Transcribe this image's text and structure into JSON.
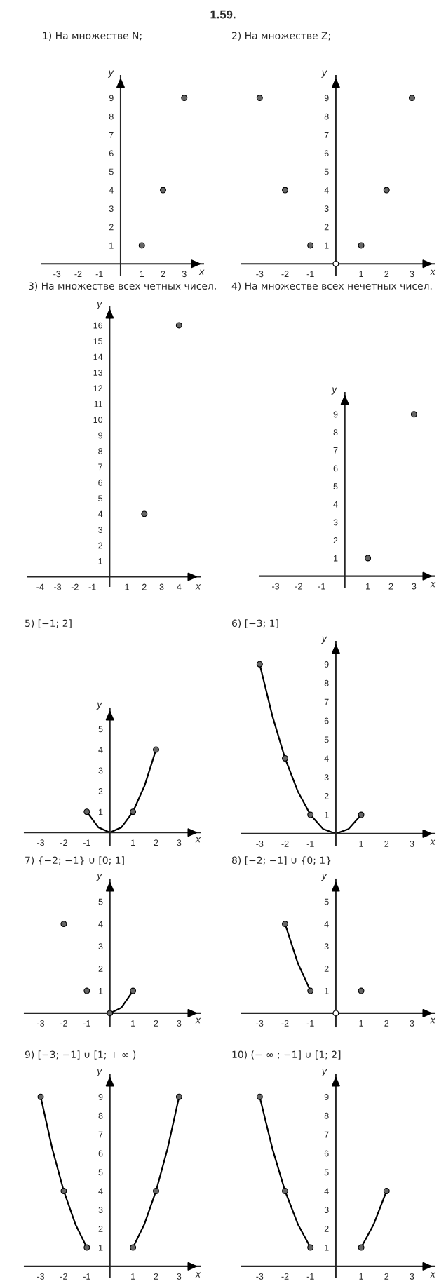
{
  "chart_data": [
    {
      "type": "scatter",
      "title": "1) На множестве N;",
      "annotations": [
        "1.59."
      ],
      "xlabel": "x",
      "ylabel": "y",
      "marker": "circle",
      "xlim": [
        -3.7,
        3.9
      ],
      "ylim": [
        -0.6,
        10.2
      ],
      "xticks": [
        -3,
        -2,
        -1,
        1,
        2,
        3
      ],
      "yticks": [
        1,
        2,
        3,
        4,
        5,
        6,
        7,
        8,
        9
      ],
      "series": [
        {
          "color": "#666666",
          "x": [
            1,
            2,
            3
          ],
          "values": [
            1,
            4,
            9
          ]
        }
      ]
    },
    {
      "type": "scatter",
      "title": "2) На множестве Z;",
      "xlabel": "x",
      "ylabel": "y",
      "marker": "circle",
      "xlim": [
        -3.7,
        3.9
      ],
      "ylim": [
        -0.6,
        10.2
      ],
      "xticks": [
        -3,
        -2,
        -1,
        1,
        2,
        3
      ],
      "yticks": [
        1,
        2,
        3,
        4,
        5,
        6,
        7,
        8,
        9
      ],
      "series": [
        {
          "color": "#666666",
          "x": [
            -3,
            -2,
            -1,
            1,
            2,
            3
          ],
          "values": [
            9,
            4,
            1,
            1,
            4,
            9
          ]
        },
        {
          "color": "#ffffff",
          "x": [
            0
          ],
          "values": [
            0
          ]
        }
      ]
    },
    {
      "type": "scatter",
      "title": "3) На множестве всех четных чисел.",
      "xlabel": "x",
      "ylabel": "y",
      "marker": "circle",
      "xlim": [
        -4.7,
        5.2
      ],
      "ylim": [
        -0.6,
        17.2
      ],
      "xticks": [
        -4,
        -3,
        -2,
        -1,
        1,
        2,
        3,
        4
      ],
      "yticks": [
        1,
        2,
        3,
        4,
        5,
        6,
        7,
        8,
        9,
        10,
        11,
        12,
        13,
        14,
        15,
        16
      ],
      "series": [
        {
          "color": "#666666",
          "x": [
            2,
            4
          ],
          "values": [
            4,
            16
          ]
        }
      ]
    },
    {
      "type": "scatter",
      "title": "4) На множестве всех нечетных чисел.",
      "xlabel": "x",
      "ylabel": "y",
      "marker": "circle",
      "xlim": [
        -3.7,
        3.9
      ],
      "ylim": [
        -0.6,
        10.2
      ],
      "xticks": [
        -3,
        -2,
        -1,
        1,
        2,
        3
      ],
      "yticks": [
        1,
        2,
        3,
        4,
        5,
        6,
        7,
        8,
        9
      ],
      "series": [
        {
          "color": "#666666",
          "x": [
            1,
            3
          ],
          "values": [
            1,
            9
          ]
        }
      ]
    },
    {
      "type": "scatter",
      "title": "5) [−1; 2]",
      "xlabel": "x",
      "ylabel": "y",
      "marker": "circle",
      "xlim": [
        -3.7,
        3.9
      ],
      "ylim": [
        -0.6,
        6
      ],
      "xticks": [
        -3,
        -2,
        -1,
        1,
        2,
        3
      ],
      "yticks": [
        1,
        2,
        3,
        4,
        5
      ],
      "series": [
        {
          "type": "line",
          "marker": "none",
          "color": "#000000",
          "x": [
            -1,
            -0.5,
            0,
            0.5,
            1,
            1.5,
            2
          ],
          "values": [
            1,
            0.25,
            0,
            0.25,
            1,
            2.25,
            4
          ]
        },
        {
          "color": "#666666",
          "x": [
            -1,
            1,
            2
          ],
          "values": [
            1,
            1,
            4
          ]
        }
      ]
    },
    {
      "type": "scatter",
      "title": "6) [−3; 1]",
      "xlabel": "x",
      "ylabel": "y",
      "marker": "circle",
      "xlim": [
        -3.7,
        3.9
      ],
      "ylim": [
        -0.6,
        10.2
      ],
      "xticks": [
        -3,
        -2,
        -1,
        1,
        2,
        3
      ],
      "yticks": [
        1,
        2,
        3,
        4,
        5,
        6,
        7,
        8,
        9
      ],
      "series": [
        {
          "type": "line",
          "marker": "none",
          "color": "#000000",
          "x": [
            -3,
            -2.5,
            -2,
            -1.5,
            -1,
            -0.5,
            0,
            0.5,
            1
          ],
          "values": [
            9,
            6.25,
            4,
            2.25,
            1,
            0.25,
            0,
            0.25,
            1
          ]
        },
        {
          "color": "#666666",
          "x": [
            -3,
            -2,
            -1,
            1
          ],
          "values": [
            9,
            4,
            1,
            1
          ]
        }
      ]
    },
    {
      "type": "scatter",
      "title": "7) {−2; −1} ∪ [0; 1]",
      "xlabel": "x",
      "ylabel": "y",
      "marker": "circle",
      "xlim": [
        -3.7,
        3.9
      ],
      "ylim": [
        -0.6,
        6
      ],
      "xticks": [
        -3,
        -2,
        -1,
        1,
        2,
        3
      ],
      "yticks": [
        1,
        2,
        3,
        4,
        5
      ],
      "series": [
        {
          "type": "line",
          "marker": "none",
          "color": "#000000",
          "x": [
            0,
            0.5,
            1
          ],
          "values": [
            0,
            0.25,
            1
          ]
        },
        {
          "color": "#666666",
          "x": [
            -2,
            -1,
            0,
            1
          ],
          "values": [
            4,
            1,
            0,
            1
          ]
        }
      ]
    },
    {
      "type": "scatter",
      "title": "8) [−2; −1] ∪ {0; 1}",
      "xlabel": "x",
      "ylabel": "y",
      "marker": "circle",
      "xlim": [
        -3.7,
        3.9
      ],
      "ylim": [
        -0.6,
        6
      ],
      "xticks": [
        -3,
        -2,
        -1,
        1,
        2,
        3
      ],
      "yticks": [
        1,
        2,
        3,
        4,
        5
      ],
      "series": [
        {
          "type": "line",
          "marker": "none",
          "color": "#000000",
          "x": [
            -2,
            -1.5,
            -1
          ],
          "values": [
            4,
            2.25,
            1
          ]
        },
        {
          "color": "#666666",
          "x": [
            -2,
            -1,
            1
          ],
          "values": [
            4,
            1,
            1
          ]
        },
        {
          "color": "#ffffff",
          "x": [
            0
          ],
          "values": [
            0
          ]
        }
      ]
    },
    {
      "type": "scatter",
      "title": "9) [−3; −1] ∪ [1; + ∞ )",
      "xlabel": "x",
      "ylabel": "y",
      "marker": "circle",
      "xlim": [
        -3.7,
        3.9
      ],
      "ylim": [
        -0.6,
        10.2
      ],
      "xticks": [
        -3,
        -2,
        -1,
        1,
        2,
        3
      ],
      "yticks": [
        1,
        2,
        3,
        4,
        5,
        6,
        7,
        8,
        9
      ],
      "series": [
        {
          "type": "line",
          "marker": "none",
          "color": "#000000",
          "x": [
            -3,
            -2.5,
            -2,
            -1.5,
            -1
          ],
          "values": [
            9,
            6.25,
            4,
            2.25,
            1
          ]
        },
        {
          "type": "line",
          "marker": "none",
          "color": "#000000",
          "x": [
            1,
            1.5,
            2,
            2.5,
            3
          ],
          "values": [
            1,
            2.25,
            4,
            6.25,
            9
          ]
        },
        {
          "color": "#666666",
          "x": [
            -3,
            -2,
            -1,
            1,
            2,
            3
          ],
          "values": [
            9,
            4,
            1,
            1,
            4,
            9
          ]
        }
      ]
    },
    {
      "type": "scatter",
      "title": "10) (− ∞ ; −1] ∪ [1; 2]",
      "xlabel": "x",
      "ylabel": "y",
      "marker": "circle",
      "xlim": [
        -3.7,
        3.9
      ],
      "ylim": [
        -0.6,
        10.2
      ],
      "xticks": [
        -3,
        -2,
        -1,
        1,
        2,
        3
      ],
      "yticks": [
        1,
        2,
        3,
        4,
        5,
        6,
        7,
        8,
        9
      ],
      "series": [
        {
          "type": "line",
          "marker": "none",
          "color": "#000000",
          "x": [
            -3,
            -2.5,
            -2,
            -1.5,
            -1
          ],
          "values": [
            9,
            6.25,
            4,
            2.25,
            1
          ]
        },
        {
          "type": "line",
          "marker": "none",
          "color": "#000000",
          "x": [
            1,
            1.5,
            2
          ],
          "values": [
            1,
            2.25,
            4
          ]
        },
        {
          "color": "#666666",
          "x": [
            -3,
            -2,
            -1,
            1,
            2
          ],
          "values": [
            9,
            4,
            1,
            1,
            4
          ]
        }
      ]
    }
  ]
}
